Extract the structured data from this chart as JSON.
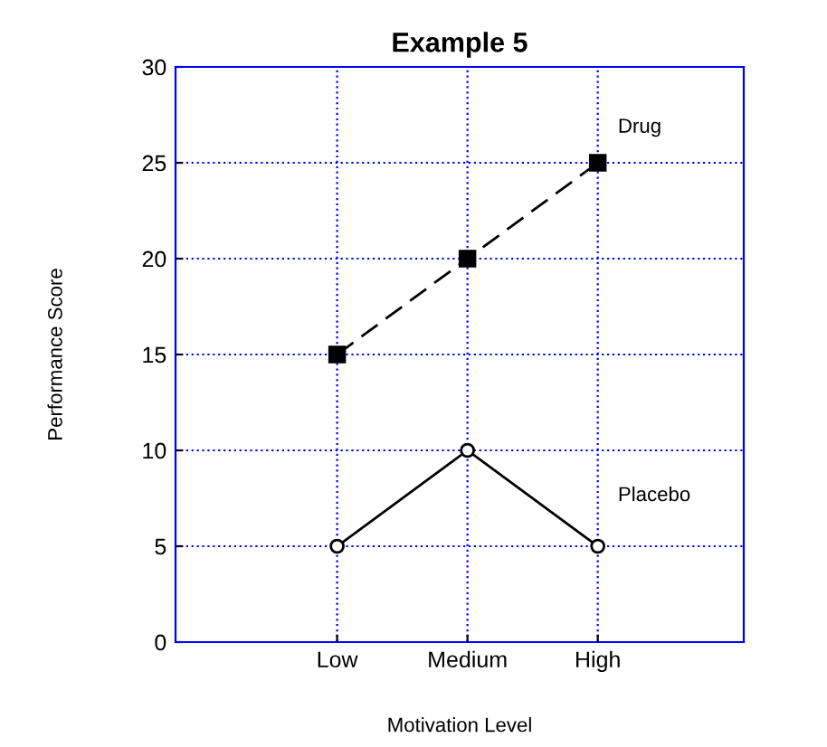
{
  "chart_data": {
    "type": "line",
    "title": "Example 5",
    "xlabel": "Motivation Level",
    "ylabel": "Performance Score",
    "categories": [
      "Low",
      "Medium",
      "High"
    ],
    "series": [
      {
        "name": "Drug",
        "color": "#000000",
        "values": [
          15,
          20,
          25
        ],
        "marker": "square",
        "line_style": "dashed"
      },
      {
        "name": "Placebo",
        "color": "#000000",
        "values": [
          5,
          10,
          5
        ],
        "marker": "circle",
        "line_style": "solid"
      }
    ],
    "ylim": [
      0,
      30
    ],
    "yticks": [
      0,
      5,
      10,
      15,
      20,
      25,
      30
    ],
    "grid": true,
    "legend": false
  }
}
